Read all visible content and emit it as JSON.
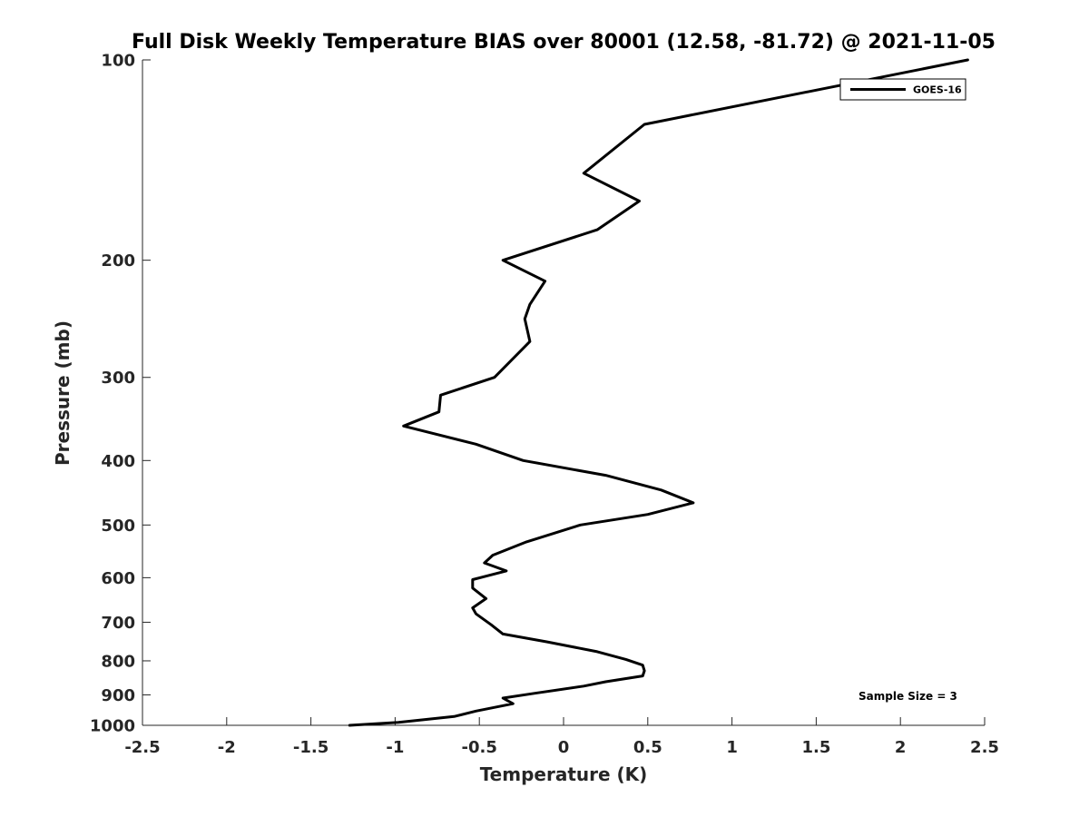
{
  "chart_data": {
    "type": "line",
    "title": "Full Disk Weekly Temperature BIAS over 80001 (12.58, -81.72) @ 2021-11-05",
    "xlabel": "Temperature (K)",
    "ylabel": "Pressure (mb)",
    "xlim": [
      -2.5,
      2.5
    ],
    "ylim": [
      100,
      1000
    ],
    "y_scale": "log",
    "y_reversed": true,
    "x_ticks": [
      -2.5,
      -2,
      -1.5,
      -1,
      -0.5,
      0,
      0.5,
      1,
      1.5,
      2,
      2.5
    ],
    "x_tick_labels": [
      "-2.5",
      "-2",
      "-1.5",
      "-1",
      "-0.5",
      "0",
      "0.5",
      "1",
      "1.5",
      "2",
      "2.5"
    ],
    "y_ticks": [
      100,
      200,
      300,
      400,
      500,
      600,
      700,
      800,
      900,
      1000
    ],
    "y_tick_labels": [
      "100",
      "200",
      "300",
      "400",
      "500",
      "600",
      "700",
      "800",
      "900",
      "1000"
    ],
    "grid": false,
    "legend_position": "top-right",
    "annotation": "Sample Size = 3",
    "series": [
      {
        "name": "GOES-16",
        "color": "#000000",
        "points": [
          {
            "x": 2.4,
            "y": 100
          },
          {
            "x": 0.48,
            "y": 125
          },
          {
            "x": 0.12,
            "y": 148
          },
          {
            "x": 0.45,
            "y": 163
          },
          {
            "x": 0.2,
            "y": 180
          },
          {
            "x": -0.36,
            "y": 200
          },
          {
            "x": -0.11,
            "y": 215
          },
          {
            "x": -0.2,
            "y": 233
          },
          {
            "x": -0.23,
            "y": 245
          },
          {
            "x": -0.2,
            "y": 265
          },
          {
            "x": -0.41,
            "y": 300
          },
          {
            "x": -0.73,
            "y": 319
          },
          {
            "x": -0.74,
            "y": 338
          },
          {
            "x": -0.95,
            "y": 355
          },
          {
            "x": -0.52,
            "y": 378
          },
          {
            "x": -0.24,
            "y": 400
          },
          {
            "x": 0.25,
            "y": 421
          },
          {
            "x": 0.58,
            "y": 443
          },
          {
            "x": 0.77,
            "y": 463
          },
          {
            "x": 0.5,
            "y": 482
          },
          {
            "x": 0.1,
            "y": 500
          },
          {
            "x": -0.22,
            "y": 530
          },
          {
            "x": -0.42,
            "y": 555
          },
          {
            "x": -0.47,
            "y": 570
          },
          {
            "x": -0.34,
            "y": 586
          },
          {
            "x": -0.54,
            "y": 604
          },
          {
            "x": -0.54,
            "y": 622
          },
          {
            "x": -0.46,
            "y": 645
          },
          {
            "x": -0.54,
            "y": 666
          },
          {
            "x": -0.52,
            "y": 680
          },
          {
            "x": -0.43,
            "y": 706
          },
          {
            "x": -0.36,
            "y": 729
          },
          {
            "x": -0.1,
            "y": 749
          },
          {
            "x": 0.2,
            "y": 775
          },
          {
            "x": 0.37,
            "y": 796
          },
          {
            "x": 0.47,
            "y": 812
          },
          {
            "x": 0.48,
            "y": 828
          },
          {
            "x": 0.47,
            "y": 843
          },
          {
            "x": 0.25,
            "y": 860
          },
          {
            "x": 0.12,
            "y": 873
          },
          {
            "x": -0.17,
            "y": 895
          },
          {
            "x": -0.36,
            "y": 910
          },
          {
            "x": -0.3,
            "y": 928
          },
          {
            "x": -0.52,
            "y": 952
          },
          {
            "x": -0.65,
            "y": 970
          },
          {
            "x": -0.98,
            "y": 990
          },
          {
            "x": -1.27,
            "y": 1000
          }
        ]
      }
    ]
  }
}
